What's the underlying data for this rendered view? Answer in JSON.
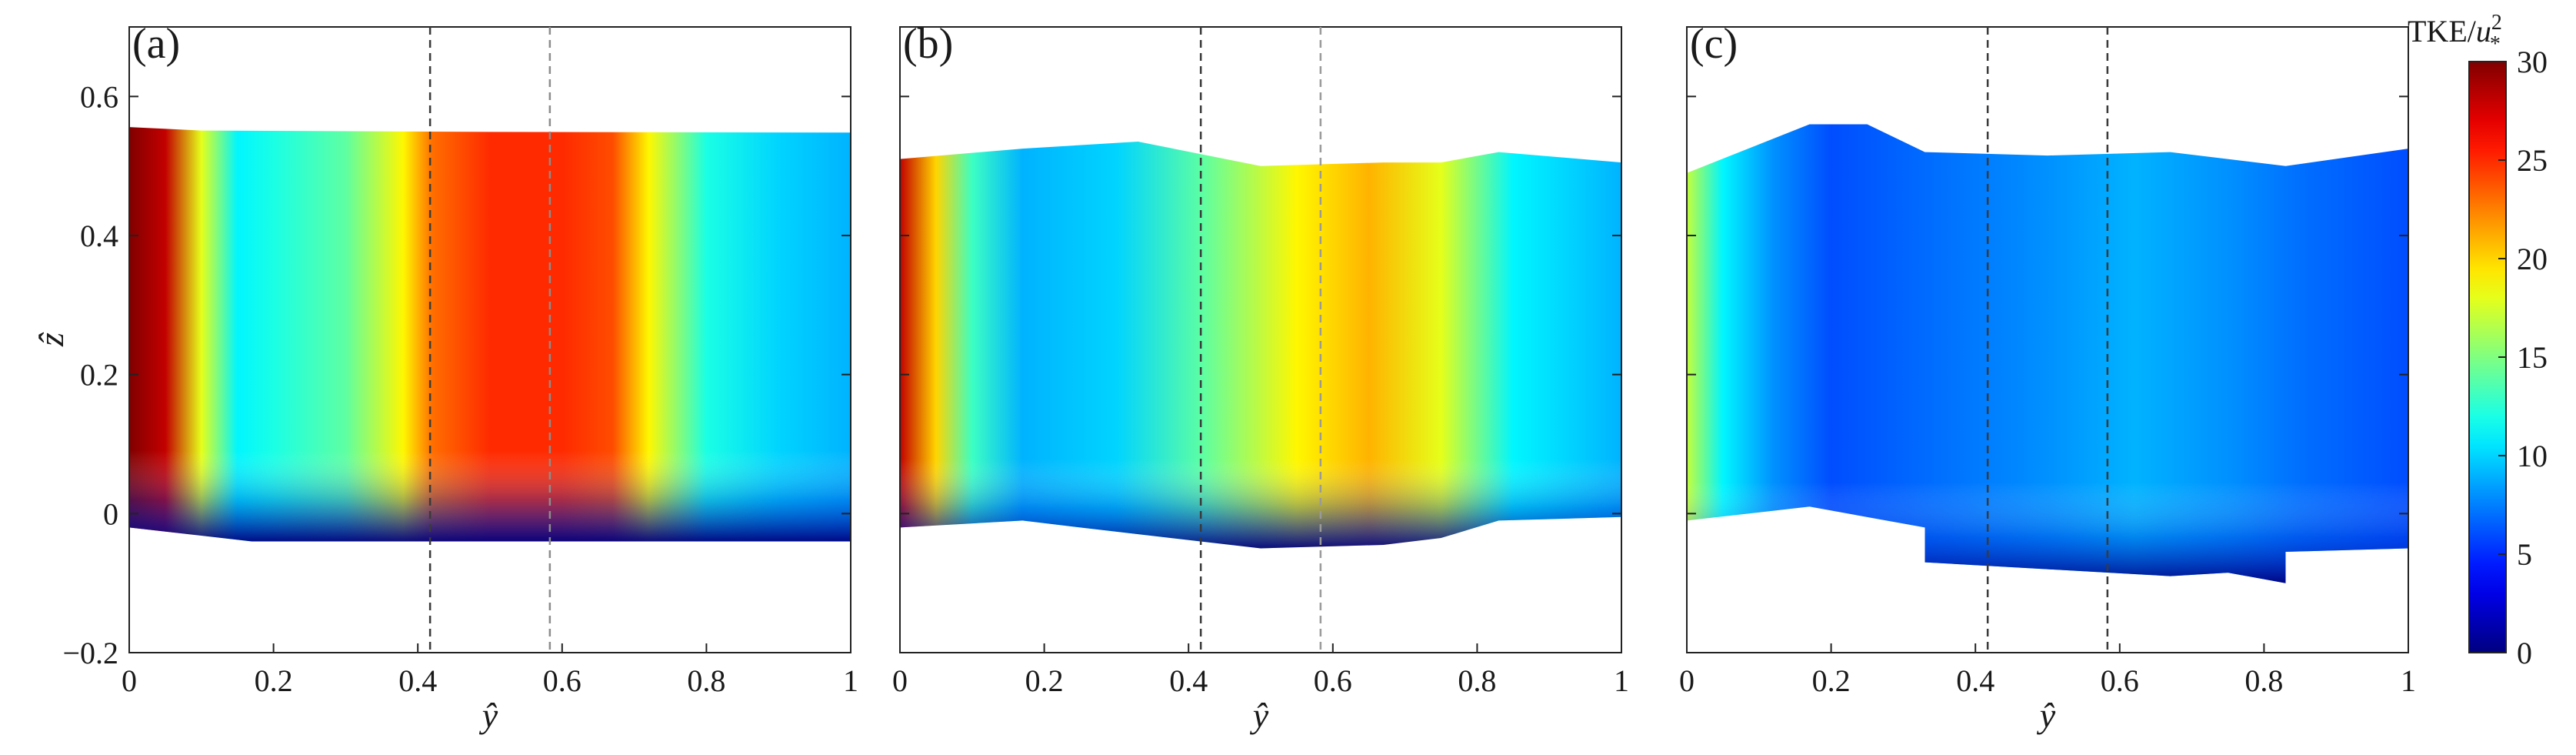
{
  "chart_data": {
    "type": "heatmap",
    "colormap": "jet",
    "colorbar": {
      "title_prefix": "TKE/",
      "title_var": "u",
      "title_sup": "2",
      "title_sub": "*",
      "range": [
        0,
        30
      ],
      "ticks": [
        "0",
        "5",
        "10",
        "15",
        "20",
        "25",
        "30"
      ]
    },
    "xlabel": "ŷ",
    "ylabel": "ẑ",
    "xlim": [
      0,
      1
    ],
    "ylim": [
      -0.2,
      0.7
    ],
    "xticks": [
      "0",
      "0.2",
      "0.4",
      "0.6",
      "0.8",
      "1"
    ],
    "yticks": [
      "−0.2",
      "0",
      "0.2",
      "0.4",
      "0.6"
    ],
    "panels": [
      {
        "label": "(a)",
        "top_boundary": [
          [
            0,
            0.556
          ],
          [
            0.1,
            0.551
          ],
          [
            0.5,
            0.549
          ],
          [
            1,
            0.548
          ]
        ],
        "bottom_boundary": [
          [
            0,
            -0.02
          ],
          [
            0.17,
            -0.04
          ],
          [
            1,
            -0.04
          ]
        ],
        "dashed_lines": [
          {
            "x": 0.417,
            "color": "#3a3a3a"
          },
          {
            "x": 0.583,
            "color": "#8c8c8c"
          }
        ],
        "profile_y": [
          0,
          0.05,
          0.1,
          0.15,
          0.2,
          0.3,
          0.38,
          0.42,
          0.5,
          0.6,
          0.67,
          0.72,
          0.8,
          0.9,
          1
        ],
        "profile_tke": [
          30,
          28,
          18,
          11,
          12,
          14,
          19,
          23,
          25,
          25,
          24,
          19,
          12,
          10,
          9
        ]
      },
      {
        "label": "(b)",
        "top_boundary": [
          [
            0,
            0.51
          ],
          [
            0.17,
            0.525
          ],
          [
            0.33,
            0.535
          ],
          [
            0.5,
            0.5
          ],
          [
            0.67,
            0.505
          ],
          [
            0.75,
            0.505
          ],
          [
            0.83,
            0.52
          ],
          [
            1,
            0.505
          ]
        ],
        "bottom_boundary": [
          [
            0,
            -0.02
          ],
          [
            0.17,
            -0.01
          ],
          [
            0.25,
            -0.02
          ],
          [
            0.5,
            -0.05
          ],
          [
            0.67,
            -0.045
          ],
          [
            0.75,
            -0.035
          ],
          [
            0.83,
            -0.01
          ],
          [
            1,
            -0.005
          ]
        ],
        "dashed_lines": [
          {
            "x": 0.417,
            "color": "#3a3a3a"
          },
          {
            "x": 0.583,
            "color": "#9a9a9a"
          }
        ],
        "profile_y": [
          0,
          0.05,
          0.1,
          0.17,
          0.3,
          0.42,
          0.55,
          0.65,
          0.75,
          0.85,
          1
        ],
        "profile_tke": [
          28,
          20,
          13,
          9,
          10,
          14,
          19,
          21,
          18,
          11,
          9
        ]
      },
      {
        "label": "(c)",
        "top_boundary": [
          [
            0,
            0.49
          ],
          [
            0.17,
            0.56
          ],
          [
            0.25,
            0.56
          ],
          [
            0.33,
            0.52
          ],
          [
            0.5,
            0.515
          ],
          [
            0.67,
            0.52
          ],
          [
            0.83,
            0.5
          ],
          [
            1,
            0.525
          ]
        ],
        "bottom_boundary": [
          [
            0,
            -0.01
          ],
          [
            0.17,
            0.01
          ],
          [
            0.33,
            -0.02
          ],
          [
            0.33,
            -0.07
          ],
          [
            0.5,
            -0.08
          ],
          [
            0.67,
            -0.09
          ],
          [
            0.75,
            -0.085
          ],
          [
            0.83,
            -0.1
          ],
          [
            0.83,
            -0.055
          ],
          [
            1,
            -0.05
          ]
        ],
        "dashed_lines": [
          {
            "x": 0.417,
            "color": "#3a3a3a"
          },
          {
            "x": 0.583,
            "color": "#3a3a3a"
          }
        ],
        "profile_y": [
          0,
          0.05,
          0.12,
          0.2,
          0.35,
          0.5,
          0.62,
          0.75,
          0.85,
          1
        ],
        "profile_tke": [
          17,
          11,
          8,
          6,
          7,
          8,
          9,
          8,
          7,
          6
        ]
      }
    ]
  }
}
